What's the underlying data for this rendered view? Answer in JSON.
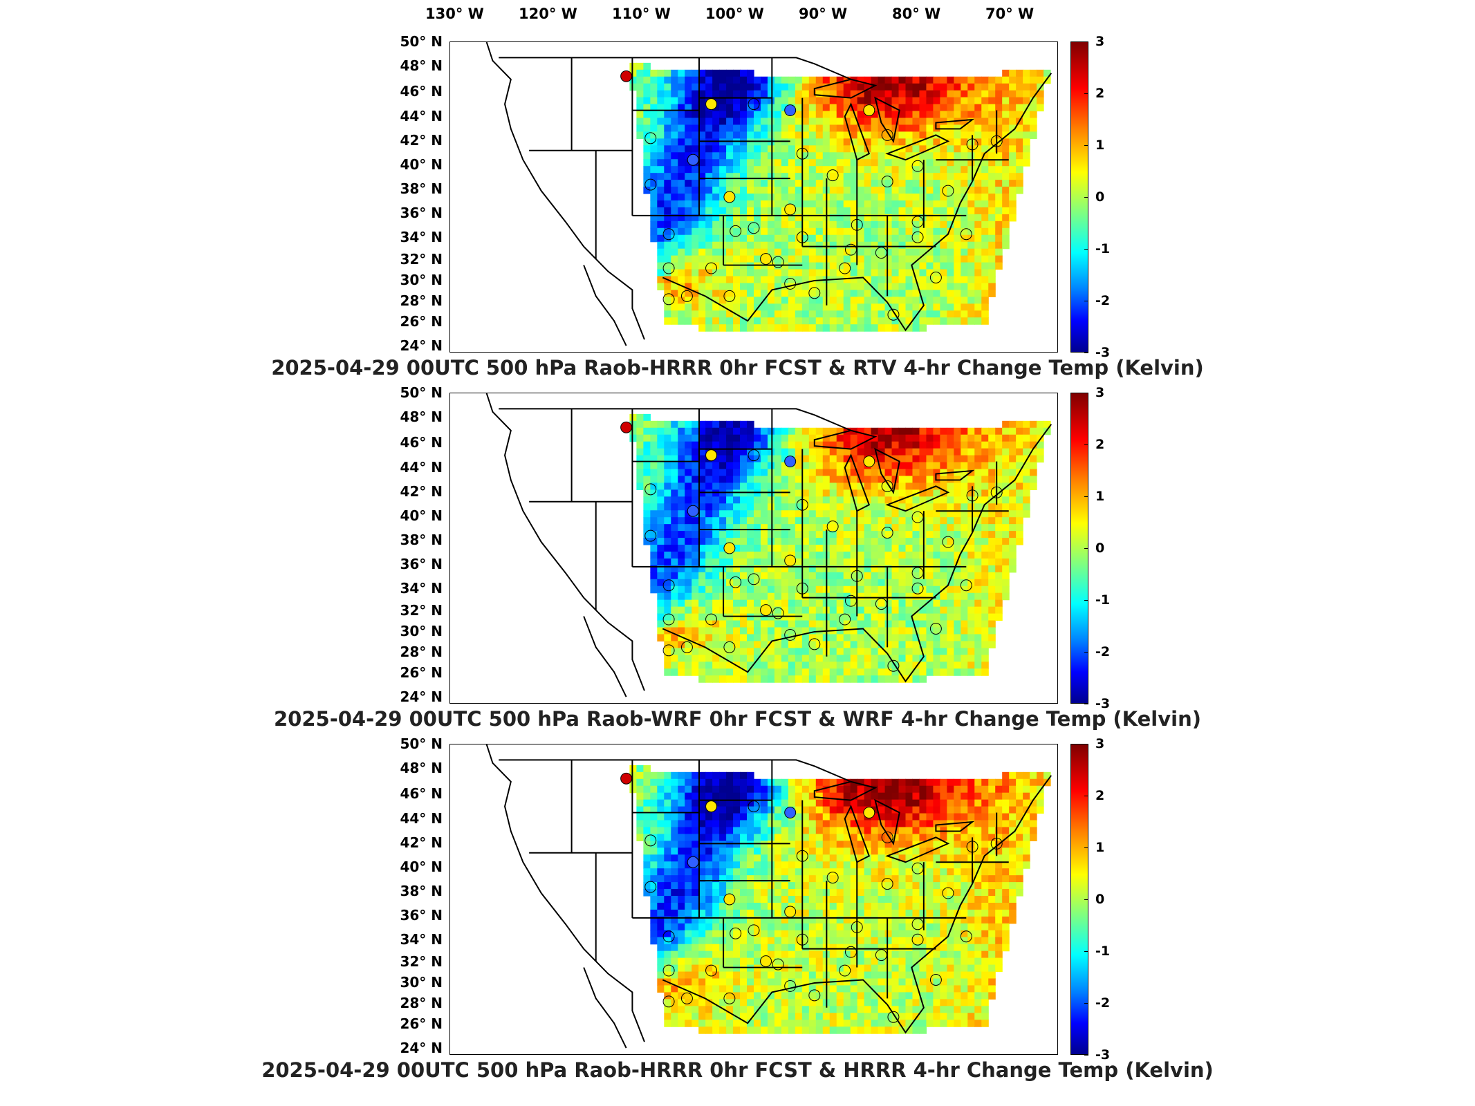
{
  "longitude_labels": [
    "130° W",
    "120° W",
    "110° W",
    "100° W",
    "90° W",
    "80° W",
    "70° W"
  ],
  "latitude_labels": [
    "50° N",
    "48° N",
    "46° N",
    "44° N",
    "42° N",
    "40° N",
    "38° N",
    "36° N",
    "34° N",
    "32° N",
    "30° N",
    "28° N",
    "26° N",
    "24° N"
  ],
  "colorbar_ticks": [
    "3",
    "2",
    "1",
    "0",
    "-1",
    "-2",
    "-3"
  ],
  "colorbar_range": [
    -3,
    3
  ],
  "colormap": [
    "#7f0000",
    "#ff0000",
    "#ff8000",
    "#ffff00",
    "#80ff80",
    "#00ffff",
    "#0080ff",
    "#0000ff",
    "#00008f"
  ],
  "panels": [
    {
      "title": "2025-04-29 00UTC 500 hPa Raob-HRRR 0hr FCST & RTV 4-hr Change Temp (Kelvin)"
    },
    {
      "title": "2025-04-29 00UTC 500 hPa Raob-WRF 0hr FCST & WRF 4-hr Change Temp (Kelvin)"
    },
    {
      "title": "2025-04-29 00UTC 500 hPa Raob-HRRR 0hr FCST & HRRR 4-hr Change Temp (Kelvin)"
    }
  ]
}
